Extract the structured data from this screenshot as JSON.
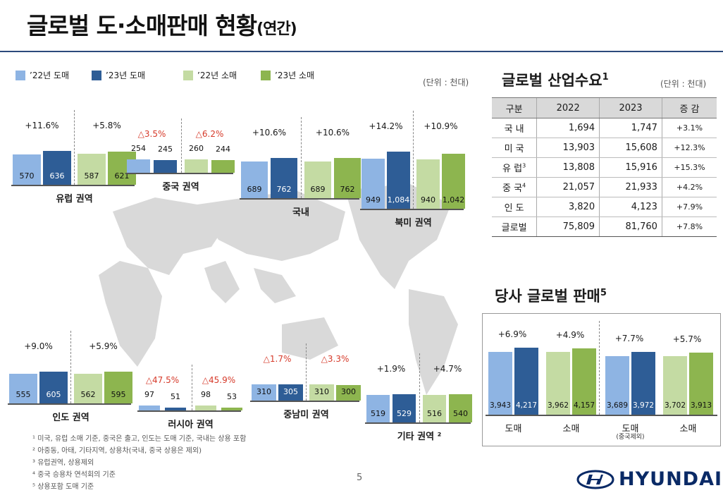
{
  "page": {
    "title_main": "글로벌 도·소매판매 현황",
    "title_sub": "(연간)",
    "unit": "(단위 : 천대)",
    "page_number": "5"
  },
  "legend": [
    {
      "label": "’22년 도매",
      "color": "#8eb4e3"
    },
    {
      "label": "’23년 도매",
      "color": "#2e5d96"
    },
    {
      "label": "’22년 소매",
      "color": "#c4dba3"
    },
    {
      "label": "’23년 소매",
      "color": "#8db54f"
    }
  ],
  "chart_data": [
    {
      "type": "bar",
      "title": "유럽 권역",
      "categories": [
        "’22년 도매",
        "’23년 도매",
        "’22년 소매",
        "’23년 소매"
      ],
      "values": [
        570,
        636,
        587,
        621
      ],
      "growth": [
        "+11.6%",
        "+5.8%"
      ]
    },
    {
      "type": "bar",
      "title": "중국 권역",
      "categories": [
        "’22년 도매",
        "’23년 도매",
        "’22년 소매",
        "’23년 소매"
      ],
      "values": [
        254,
        245,
        260,
        244
      ],
      "growth": [
        "△3.5%",
        "△6.2%"
      ]
    },
    {
      "type": "bar",
      "title": "국내",
      "categories": [
        "’22년 도매",
        "’23년 도매",
        "’22년 소매",
        "’23년 소매"
      ],
      "values": [
        689,
        762,
        689,
        762
      ],
      "growth": [
        "+10.6%",
        "+10.6%"
      ]
    },
    {
      "type": "bar",
      "title": "북미 권역",
      "categories": [
        "’22년 도매",
        "’23년 도매",
        "’22년 소매",
        "’23년 소매"
      ],
      "values": [
        949,
        1084,
        940,
        1042
      ],
      "labels": [
        "949",
        "1,084",
        "940",
        "1,042"
      ],
      "growth": [
        "+14.2%",
        "+10.9%"
      ]
    },
    {
      "type": "bar",
      "title": "인도 권역",
      "categories": [
        "’22년 도매",
        "’23년 도매",
        "’22년 소매",
        "’23년 소매"
      ],
      "values": [
        555,
        605,
        562,
        595
      ],
      "growth": [
        "+9.0%",
        "+5.9%"
      ]
    },
    {
      "type": "bar",
      "title": "러시아 권역",
      "categories": [
        "’22년 도매",
        "’23년 도매",
        "’22년 소매",
        "’23년 소매"
      ],
      "values": [
        97,
        51,
        98,
        53
      ],
      "growth": [
        "△47.5%",
        "△45.9%"
      ]
    },
    {
      "type": "bar",
      "title": "중남미 권역",
      "categories": [
        "’22년 도매",
        "’23년 도매",
        "’22년 소매",
        "’23년 소매"
      ],
      "values": [
        310,
        305,
        310,
        300
      ],
      "growth": [
        "△1.7%",
        "△3.3%"
      ]
    },
    {
      "type": "bar",
      "title": "기타 권역 ²",
      "categories": [
        "’22년 도매",
        "’23년 도매",
        "’22년 소매",
        "’23년 소매"
      ],
      "values": [
        519,
        529,
        516,
        540
      ],
      "growth": [
        "+1.9%",
        "+4.7%"
      ]
    },
    {
      "type": "bar",
      "title": "당사 글로벌 판매⁵",
      "categories": [
        "도매",
        "소매",
        "도매",
        "소매"
      ],
      "subnote": "(중국제외)",
      "series": [
        {
          "name": "2022",
          "values": [
            3943,
            3962,
            3689,
            3702
          ]
        },
        {
          "name": "2023",
          "values": [
            4217,
            4157,
            3972,
            3913
          ]
        }
      ],
      "labels": [
        [
          "3,943",
          "4,217"
        ],
        [
          "3,962",
          "4,157"
        ],
        [
          "3,689",
          "3,972"
        ],
        [
          "3,702",
          "3,913"
        ]
      ],
      "growth": [
        "+6.9%",
        "+4.9%",
        "+7.7%",
        "+5.7%"
      ]
    }
  ],
  "demand": {
    "title": "글로벌 산업수요",
    "title_sup": "1",
    "unit": "(단위 : 천대)",
    "headers": [
      "구분",
      "2022",
      "2023",
      "증 감"
    ],
    "rows": [
      {
        "name": "국 내",
        "sup": "",
        "v22": "1,694",
        "v23": "1,747",
        "chg": "+3.1%"
      },
      {
        "name": "미 국",
        "sup": "",
        "v22": "13,903",
        "v23": "15,608",
        "chg": "+12.3%"
      },
      {
        "name": "유 럽",
        "sup": "3",
        "v22": "13,808",
        "v23": "15,916",
        "chg": "+15.3%"
      },
      {
        "name": "중 국",
        "sup": "4",
        "v22": "21,057",
        "v23": "21,933",
        "chg": "+4.2%"
      },
      {
        "name": "인 도",
        "sup": "",
        "v22": "3,820",
        "v23": "4,123",
        "chg": "+7.9%"
      },
      {
        "name": "글로벌",
        "sup": "",
        "v22": "75,809",
        "v23": "81,760",
        "chg": "+7.8%"
      }
    ]
  },
  "sales": {
    "title": "당사 글로벌 판매",
    "title_sup": "5"
  },
  "footnotes": [
    "¹ 미국, 유럽 소매 기준, 중국은 출고, 인도는 도매 기준, 국내는 상용 포함",
    "² 아중동, 아태, 기타지역, 상용차(국내, 중국 상용은 제외)",
    "³ 유럽권역, 상용제외",
    "⁴ 중국 승용차 연석회의 기준",
    "⁵ 상용포함 도매 기준"
  ],
  "logo": {
    "text": "HYUNDAI"
  }
}
